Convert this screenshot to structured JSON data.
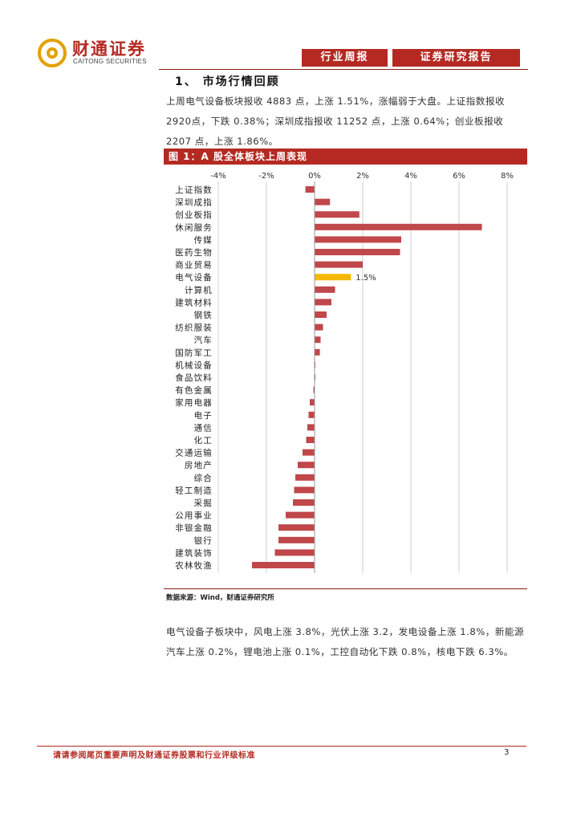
{
  "header": {
    "brand_cn": "财通证券",
    "brand_en": "CAITONG SECURITIES",
    "tag_left": "行业周报",
    "tag_right": "证券研究报告",
    "accent": "#b42a22"
  },
  "section": {
    "title": "1、 市场行情回顾",
    "para1": "上周电气设备板块报收 4883 点，上涨 1.51%，涨幅弱于大盘。上证指数报收 2920点，下跌 0.38%；深圳成指报收 11252 点，上涨 0.64%；创业板报收 2207 点，上涨 1.86%。",
    "para2": "电气设备子板块中，风电上涨 3.8%，光伏上涨 3.2，发电设备上涨 1.8%，新能源汽车上涨 0.2%，锂电池上涨 0.1%，工控自动化下跌 0.8%，核电下跌 6.3%。"
  },
  "figure": {
    "title": "图 1：A 股全体板块上周表现",
    "source": "数据来源：Wind，财通证券研究所"
  },
  "chart_data": {
    "type": "bar",
    "orientation": "horizontal",
    "xlim": [
      -4,
      8
    ],
    "xticks": [
      "-4%",
      "-2%",
      "0%",
      "2%",
      "4%",
      "6%",
      "8%"
    ],
    "grid": true,
    "categories": [
      "上证指数",
      "深圳成指",
      "创业板指",
      "休闲服务",
      "传媒",
      "医药生物",
      "商业贸易",
      "电气设备",
      "计算机",
      "建筑材料",
      "钢铁",
      "纺织服装",
      "汽车",
      "国防军工",
      "机械设备",
      "食品饮料",
      "有色金属",
      "家用电器",
      "电子",
      "通信",
      "化工",
      "交通运输",
      "房地产",
      "综合",
      "轻工制造",
      "采掘",
      "公用事业",
      "非银金融",
      "银行",
      "建筑装饰",
      "农林牧渔"
    ],
    "values": [
      -0.38,
      0.64,
      1.86,
      6.95,
      3.6,
      3.55,
      2.0,
      1.51,
      0.85,
      0.7,
      0.5,
      0.35,
      0.25,
      0.22,
      0.02,
      0.0,
      -0.05,
      -0.2,
      -0.25,
      -0.3,
      -0.35,
      -0.5,
      -0.7,
      -0.8,
      -0.85,
      -0.9,
      -1.2,
      -1.5,
      -1.5,
      -1.65,
      -2.6
    ],
    "highlight_index": 7,
    "highlight_label": "1.5%",
    "bar_color": "#c0474a",
    "highlight_color": "#f5b800"
  },
  "footer": {
    "note": "请请参阅尾页重要声明及财通证券股票和行业评级标准",
    "page": "3"
  }
}
